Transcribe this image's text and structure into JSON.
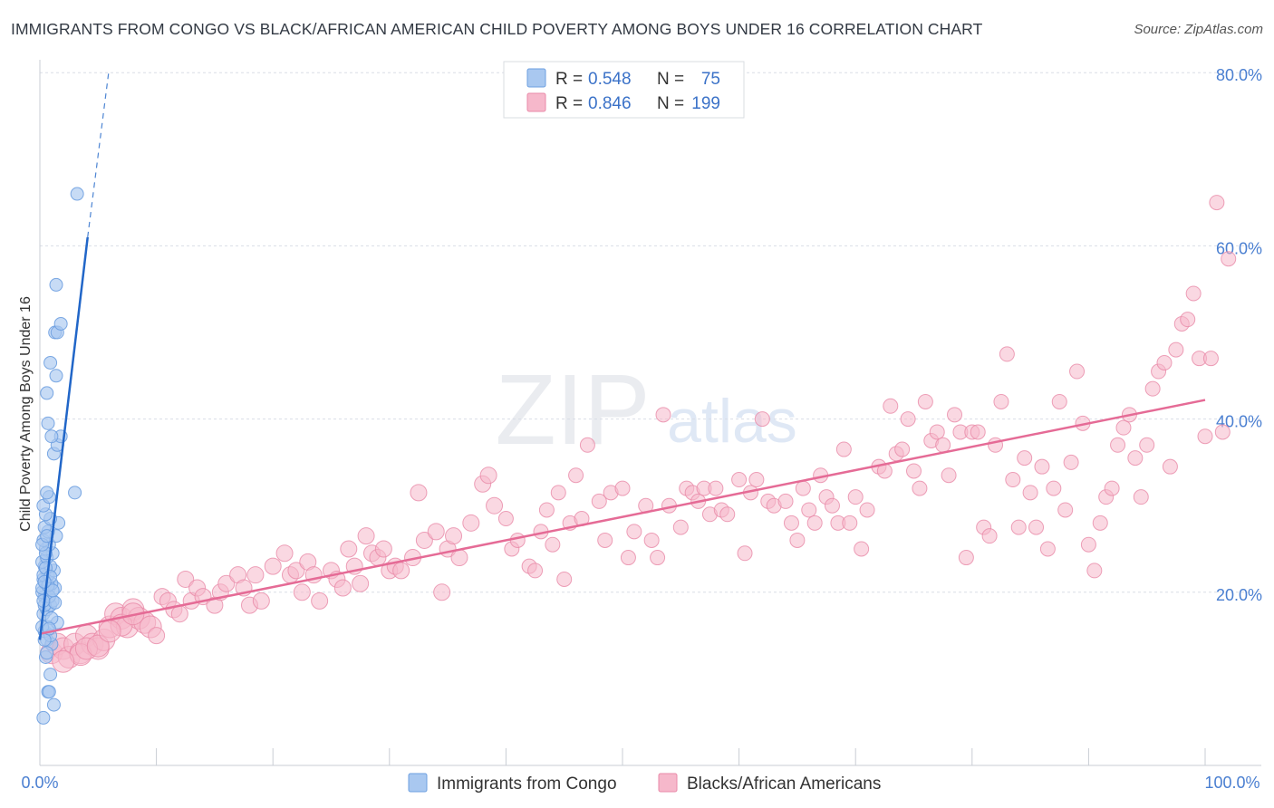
{
  "header": {
    "title": "IMMIGRANTS FROM CONGO VS BLACK/AFRICAN AMERICAN CHILD POVERTY AMONG BOYS UNDER 16 CORRELATION CHART",
    "source": "Source: ZipAtlas.com"
  },
  "watermark": {
    "zip": "ZIP",
    "atlas": "atlas"
  },
  "legend_box": {
    "rows": [
      {
        "r_label": "R =",
        "r_value": "0.548",
        "n_label": "N =",
        "n_value": "75",
        "color": "#a9c8f0"
      },
      {
        "r_label": "R =",
        "r_value": "0.846",
        "n_label": "N =",
        "n_value": "199",
        "color": "#f6b8cb"
      }
    ]
  },
  "bottom_legend": {
    "series1": "Immigrants from Congo",
    "series2": "Blacks/African Americans"
  },
  "colors": {
    "blue_fill": "#a9c8f0",
    "blue_stroke": "#6d9fe0",
    "blue_line": "#2166c8",
    "pink_fill": "#f6b8cb",
    "pink_stroke": "#e98aa8",
    "pink_line": "#e56b96",
    "tick_label": "#4a7fd1",
    "grid": "#d9dde6"
  },
  "chart_data": {
    "type": "scatter",
    "title": "IMMIGRANTS FROM CONGO VS BLACK/AFRICAN AMERICAN CHILD POVERTY AMONG BOYS UNDER 16 CORRELATION CHART",
    "xlabel": "",
    "ylabel": "Child Poverty Among Boys Under 16",
    "xlim": [
      0,
      100
    ],
    "ylim": [
      0,
      84
    ],
    "x_tick_labels": [
      "0.0%",
      "100.0%"
    ],
    "y_ticks": [
      20,
      40,
      60,
      80
    ],
    "y_tick_labels": [
      "20.0%",
      "40.0%",
      "60.0%",
      "80.0%"
    ],
    "grid": true,
    "series": [
      {
        "name": "Immigrants from Congo",
        "r": 0.548,
        "n": 75,
        "trend": {
          "x1": 0,
          "y1": 14.5,
          "x2": 4.1,
          "y2": 61,
          "dash_x2": 5.9,
          "dash_y2": 80
        },
        "points": [
          [
            0.3,
            5.5
          ],
          [
            0.5,
            12.5
          ],
          [
            0.7,
            8.5
          ],
          [
            0.9,
            10.5
          ],
          [
            1.2,
            7
          ],
          [
            0.8,
            8.5
          ],
          [
            0.6,
            14.5
          ],
          [
            1.0,
            14.0
          ],
          [
            0.4,
            15.5
          ],
          [
            0.7,
            16.0
          ],
          [
            1.5,
            16.5
          ],
          [
            0.3,
            17.5
          ],
          [
            0.6,
            18.0
          ],
          [
            0.9,
            18.5
          ],
          [
            1.1,
            19.0
          ],
          [
            0.4,
            19.5
          ],
          [
            0.2,
            20.0
          ],
          [
            0.8,
            20.5
          ],
          [
            1.3,
            20.5
          ],
          [
            0.5,
            21.0
          ],
          [
            1.0,
            21.0
          ],
          [
            0.3,
            21.5
          ],
          [
            0.7,
            22.0
          ],
          [
            1.2,
            22.5
          ],
          [
            0.4,
            23.0
          ],
          [
            0.9,
            23.0
          ],
          [
            0.2,
            23.5
          ],
          [
            0.6,
            24.0
          ],
          [
            1.1,
            24.5
          ],
          [
            0.5,
            25.0
          ],
          [
            0.8,
            25.5
          ],
          [
            0.3,
            26.0
          ],
          [
            1.4,
            26.5
          ],
          [
            0.7,
            27.0
          ],
          [
            0.4,
            27.5
          ],
          [
            1.6,
            28.0
          ],
          [
            0.9,
            28.5
          ],
          [
            0.5,
            29.0
          ],
          [
            0.3,
            30.0
          ],
          [
            0.8,
            31.0
          ],
          [
            0.6,
            31.5
          ],
          [
            3.0,
            31.5
          ],
          [
            1.2,
            36.0
          ],
          [
            1.5,
            37.0
          ],
          [
            1.8,
            38.0
          ],
          [
            1.0,
            38.0
          ],
          [
            0.7,
            39.5
          ],
          [
            0.6,
            43.0
          ],
          [
            1.4,
            45.0
          ],
          [
            0.9,
            46.5
          ],
          [
            1.3,
            50.0
          ],
          [
            1.5,
            50.0
          ],
          [
            1.8,
            51.0
          ],
          [
            1.4,
            55.5
          ],
          [
            3.2,
            66.0
          ],
          [
            0.2,
            20.5
          ],
          [
            0.4,
            18.5
          ],
          [
            0.2,
            16.0
          ],
          [
            0.6,
            13.0
          ],
          [
            0.9,
            15.0
          ],
          [
            0.3,
            22.0
          ],
          [
            0.5,
            24.5
          ],
          [
            0.2,
            25.5
          ],
          [
            0.8,
            19.5
          ],
          [
            1.0,
            17.0
          ],
          [
            0.4,
            14.5
          ],
          [
            0.7,
            20.8
          ],
          [
            1.3,
            18.8
          ],
          [
            0.5,
            22.8
          ],
          [
            0.3,
            19.0
          ],
          [
            0.9,
            21.8
          ],
          [
            0.6,
            26.5
          ],
          [
            1.1,
            20.2
          ],
          [
            0.4,
            21.2
          ],
          [
            0.8,
            15.8
          ]
        ]
      },
      {
        "name": "Blacks/African Americans",
        "r": 0.846,
        "n": 199,
        "trend": {
          "x1": 0,
          "y1": 15.2,
          "x2": 100,
          "y2": 42.2
        },
        "points": [
          [
            1,
            13
          ],
          [
            1.5,
            14
          ],
          [
            2,
            13.5
          ],
          [
            2.5,
            12.5
          ],
          [
            3,
            14
          ],
          [
            3.5,
            13
          ],
          [
            4,
            15
          ],
          [
            4.5,
            14
          ],
          [
            5,
            13.5
          ],
          [
            5.5,
            14.5
          ],
          [
            6,
            16
          ],
          [
            6.5,
            17.5
          ],
          [
            7,
            17
          ],
          [
            7.5,
            16
          ],
          [
            8,
            18
          ],
          [
            8.5,
            17
          ],
          [
            9,
            16.5
          ],
          [
            9.5,
            16
          ],
          [
            10,
            15
          ],
          [
            10.5,
            19.5
          ],
          [
            11,
            19
          ],
          [
            11.5,
            18
          ],
          [
            12,
            17.5
          ],
          [
            12.5,
            21.5
          ],
          [
            13,
            19
          ],
          [
            13.5,
            20.5
          ],
          [
            14,
            19.5
          ],
          [
            15,
            18.5
          ],
          [
            15.5,
            20
          ],
          [
            16,
            21
          ],
          [
            17,
            22
          ],
          [
            17.5,
            20.5
          ],
          [
            18,
            18.5
          ],
          [
            18.5,
            22
          ],
          [
            19,
            19
          ],
          [
            20,
            23
          ],
          [
            21,
            24.5
          ],
          [
            21.5,
            22
          ],
          [
            22,
            22.5
          ],
          [
            22.5,
            20
          ],
          [
            23,
            23.5
          ],
          [
            23.5,
            22
          ],
          [
            24,
            19
          ],
          [
            25,
            22.5
          ],
          [
            25.5,
            21.5
          ],
          [
            26,
            20.5
          ],
          [
            26.5,
            25
          ],
          [
            27,
            23
          ],
          [
            27.5,
            21
          ],
          [
            28,
            26.5
          ],
          [
            28.5,
            24.5
          ],
          [
            29,
            24
          ],
          [
            29.5,
            25
          ],
          [
            30,
            22.5
          ],
          [
            30.5,
            23
          ],
          [
            31,
            22.5
          ],
          [
            32,
            24
          ],
          [
            32.5,
            31.5
          ],
          [
            33,
            26
          ],
          [
            34,
            27
          ],
          [
            34.5,
            20
          ],
          [
            35,
            25
          ],
          [
            35.5,
            26.5
          ],
          [
            36,
            24
          ],
          [
            37,
            28
          ],
          [
            38,
            32.5
          ],
          [
            38.5,
            33.5
          ],
          [
            39,
            30
          ],
          [
            40,
            28.5
          ],
          [
            40.5,
            25
          ],
          [
            41,
            26
          ],
          [
            42,
            23
          ],
          [
            42.5,
            22.5
          ],
          [
            43,
            27
          ],
          [
            43.5,
            29.5
          ],
          [
            44,
            25.5
          ],
          [
            44.5,
            31.5
          ],
          [
            45,
            21.5
          ],
          [
            45.5,
            28
          ],
          [
            46,
            33.5
          ],
          [
            46.5,
            28.5
          ],
          [
            47,
            37
          ],
          [
            48,
            30.5
          ],
          [
            48.5,
            26
          ],
          [
            49,
            31.5
          ],
          [
            50,
            32
          ],
          [
            50.5,
            24
          ],
          [
            51,
            27
          ],
          [
            52,
            30
          ],
          [
            52.5,
            26
          ],
          [
            53,
            24
          ],
          [
            53.5,
            40.5
          ],
          [
            54,
            30
          ],
          [
            55,
            27.5
          ],
          [
            55.5,
            32
          ],
          [
            56,
            31.5
          ],
          [
            56.5,
            30.5
          ],
          [
            57,
            32
          ],
          [
            57.5,
            29
          ],
          [
            58,
            32
          ],
          [
            58.5,
            29.5
          ],
          [
            59,
            29
          ],
          [
            60,
            33
          ],
          [
            60.5,
            24.5
          ],
          [
            61,
            31.5
          ],
          [
            61.5,
            33
          ],
          [
            62,
            40
          ],
          [
            62.5,
            30.5
          ],
          [
            63,
            30
          ],
          [
            64,
            30.5
          ],
          [
            64.5,
            28
          ],
          [
            65,
            26
          ],
          [
            65.5,
            32
          ],
          [
            66,
            29.5
          ],
          [
            66.5,
            28
          ],
          [
            67,
            33.5
          ],
          [
            67.5,
            31
          ],
          [
            68,
            30
          ],
          [
            68.5,
            28
          ],
          [
            69,
            36.5
          ],
          [
            69.5,
            28
          ],
          [
            70,
            31
          ],
          [
            70.5,
            25
          ],
          [
            71,
            29.5
          ],
          [
            72,
            34.5
          ],
          [
            72.5,
            34
          ],
          [
            73,
            41.5
          ],
          [
            73.5,
            36
          ],
          [
            74,
            36.5
          ],
          [
            74.5,
            40
          ],
          [
            75,
            34
          ],
          [
            75.5,
            32
          ],
          [
            76,
            42
          ],
          [
            76.5,
            37.5
          ],
          [
            77,
            38.5
          ],
          [
            77.5,
            37
          ],
          [
            78,
            33.5
          ],
          [
            78.5,
            40.5
          ],
          [
            79,
            38.5
          ],
          [
            79.5,
            24
          ],
          [
            80,
            38.5
          ],
          [
            80.5,
            38.5
          ],
          [
            81,
            27.5
          ],
          [
            81.5,
            26.5
          ],
          [
            82,
            37
          ],
          [
            82.5,
            42
          ],
          [
            83,
            47.5
          ],
          [
            83.5,
            33
          ],
          [
            84,
            27.5
          ],
          [
            84.5,
            35.5
          ],
          [
            85,
            31.5
          ],
          [
            85.5,
            27.5
          ],
          [
            86,
            34.5
          ],
          [
            86.5,
            25
          ],
          [
            87,
            32
          ],
          [
            87.5,
            42
          ],
          [
            88,
            29.5
          ],
          [
            88.5,
            35
          ],
          [
            89,
            45.5
          ],
          [
            89.5,
            39.5
          ],
          [
            90,
            25.5
          ],
          [
            90.5,
            22.5
          ],
          [
            91,
            28
          ],
          [
            91.5,
            31
          ],
          [
            92,
            32
          ],
          [
            92.5,
            37
          ],
          [
            93,
            39
          ],
          [
            93.5,
            40.5
          ],
          [
            94,
            35.5
          ],
          [
            94.5,
            31
          ],
          [
            95,
            37
          ],
          [
            95.5,
            43.5
          ],
          [
            96,
            45.5
          ],
          [
            96.5,
            46.5
          ],
          [
            97,
            34.5
          ],
          [
            97.5,
            48
          ],
          [
            98,
            51
          ],
          [
            98.5,
            51.5
          ],
          [
            99,
            54.5
          ],
          [
            99.5,
            47
          ],
          [
            100,
            38
          ],
          [
            100.5,
            47
          ],
          [
            101,
            65
          ],
          [
            101.5,
            38.5
          ],
          [
            102,
            58.5
          ],
          [
            3.5,
            12.8
          ],
          [
            2,
            12
          ],
          [
            4,
            13.5
          ],
          [
            5,
            13.8
          ],
          [
            7,
            16.2
          ],
          [
            8,
            17.5
          ],
          [
            6,
            15.5
          ]
        ]
      }
    ]
  }
}
